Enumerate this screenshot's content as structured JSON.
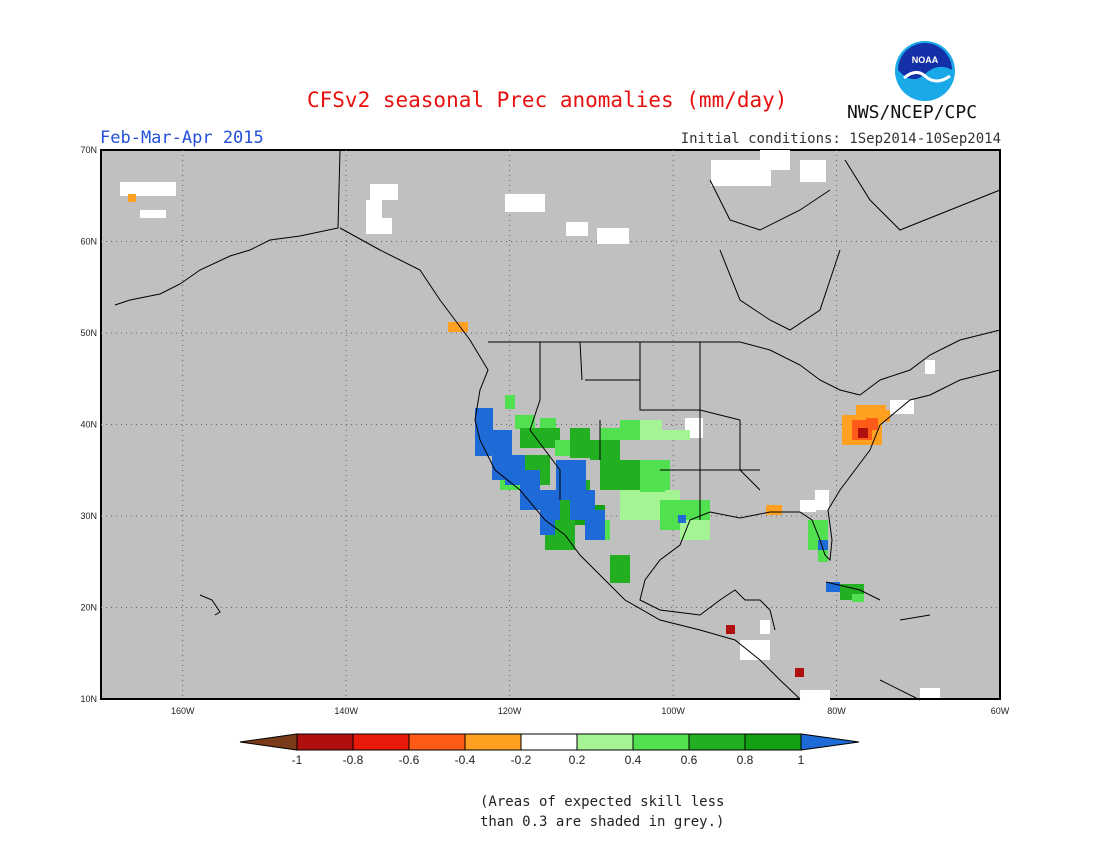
{
  "header": {
    "title": "CFSv2 seasonal Prec anomalies (mm/day)",
    "season": "Feb-Mar-Apr 2015",
    "initial_conditions": "Initial conditions: 1Sep2014-10Sep2014",
    "agency": "NWS/NCEP/CPC",
    "logo_text": "NOAA"
  },
  "map": {
    "grey_color": "#c0c0c0",
    "lat_labels": [
      "70N",
      "60N",
      "50N",
      "40N",
      "30N",
      "20N",
      "10N"
    ],
    "lon_labels": [
      "160W",
      "140W",
      "120W",
      "100W",
      "80W",
      "60W"
    ]
  },
  "colorbar": {
    "tick_labels": [
      "-1",
      "-0.8",
      "-0.6",
      "-0.4",
      "-0.2",
      "0.2",
      "0.4",
      "0.6",
      "0.8",
      "1"
    ],
    "colors": [
      "#7a3b1a",
      "#b00f0f",
      "#e81a0a",
      "#ff5a18",
      "#ffa020",
      "#ffffff",
      "#a4f494",
      "#50e050",
      "#22b022",
      "#13a013",
      "#1e6bd8"
    ]
  },
  "note": [
    "(Areas of expected skill less",
    "than 0.3 are shaded in grey.)"
  ]
}
